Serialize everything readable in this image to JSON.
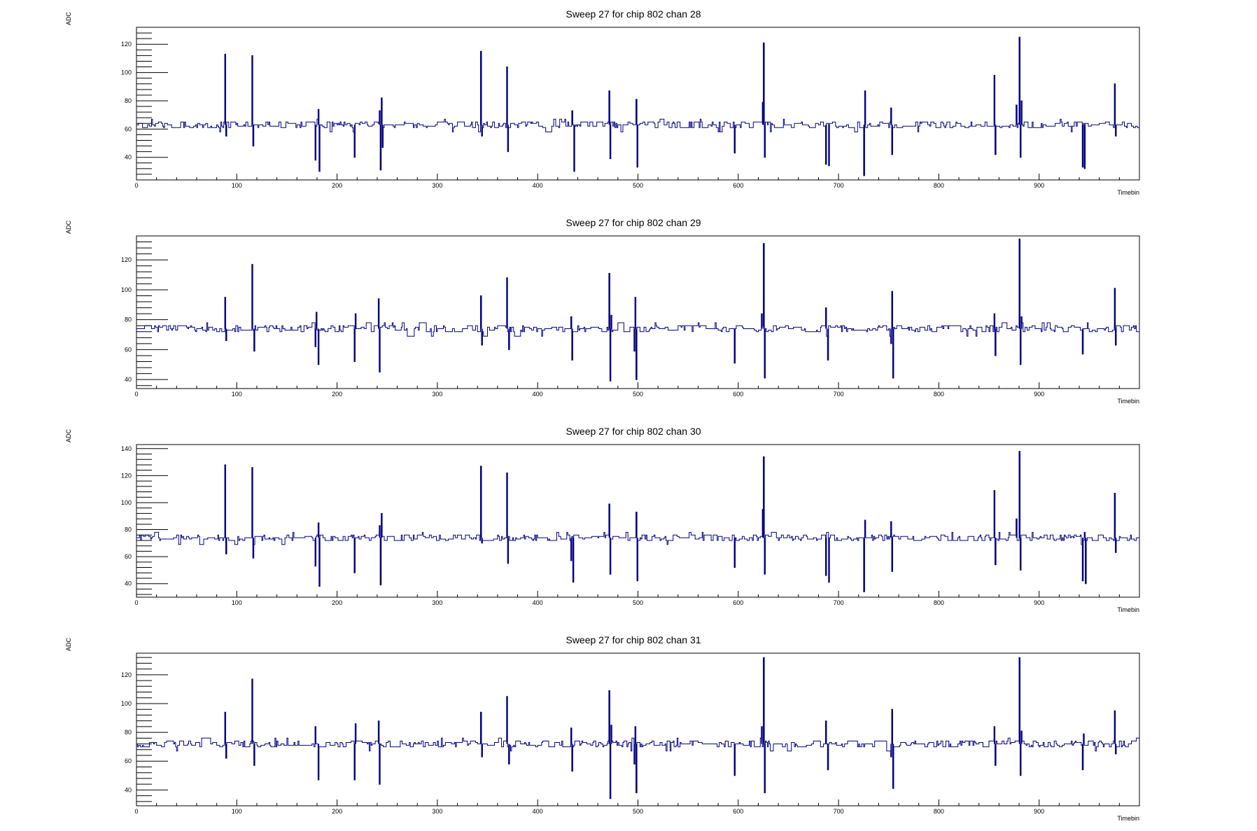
{
  "chart_data": [
    {
      "type": "line",
      "title": "Sweep 27 for chip 802 chan 28",
      "xlabel": "Timebin",
      "ylabel": "ADC",
      "xlim": [
        0,
        1000
      ],
      "ylim": [
        24,
        132
      ],
      "x_ticks": [
        "0",
        "100",
        "200",
        "300",
        "400",
        "500",
        "600",
        "700",
        "800",
        "900"
      ],
      "y_ticks": [
        "40",
        "60",
        "80",
        "100",
        "120"
      ],
      "baseline": 63,
      "color": "#000080",
      "spikes": [
        {
          "x": 88,
          "y": 113
        },
        {
          "x": 89,
          "y": 55
        },
        {
          "x": 115,
          "y": 112
        },
        {
          "x": 116,
          "y": 48
        },
        {
          "x": 178,
          "y": 38
        },
        {
          "x": 181,
          "y": 74
        },
        {
          "x": 182,
          "y": 30
        },
        {
          "x": 217,
          "y": 40
        },
        {
          "x": 242,
          "y": 73
        },
        {
          "x": 243,
          "y": 31
        },
        {
          "x": 244,
          "y": 82
        },
        {
          "x": 245,
          "y": 47
        },
        {
          "x": 343,
          "y": 115
        },
        {
          "x": 344,
          "y": 55
        },
        {
          "x": 369,
          "y": 104
        },
        {
          "x": 370,
          "y": 44
        },
        {
          "x": 434,
          "y": 73
        },
        {
          "x": 436,
          "y": 30
        },
        {
          "x": 471,
          "y": 87
        },
        {
          "x": 472,
          "y": 39
        },
        {
          "x": 498,
          "y": 81
        },
        {
          "x": 499,
          "y": 33
        },
        {
          "x": 596,
          "y": 43
        },
        {
          "x": 624,
          "y": 79
        },
        {
          "x": 625,
          "y": 121
        },
        {
          "x": 626,
          "y": 40
        },
        {
          "x": 687,
          "y": 35
        },
        {
          "x": 690,
          "y": 34
        },
        {
          "x": 725,
          "y": 27
        },
        {
          "x": 726,
          "y": 87
        },
        {
          "x": 752,
          "y": 75
        },
        {
          "x": 753,
          "y": 42
        },
        {
          "x": 855,
          "y": 98
        },
        {
          "x": 856,
          "y": 42
        },
        {
          "x": 877,
          "y": 77
        },
        {
          "x": 880,
          "y": 125
        },
        {
          "x": 881,
          "y": 40
        },
        {
          "x": 882,
          "y": 80
        },
        {
          "x": 943,
          "y": 33
        },
        {
          "x": 945,
          "y": 32
        },
        {
          "x": 975,
          "y": 92
        },
        {
          "x": 976,
          "y": 55
        }
      ]
    },
    {
      "type": "line",
      "title": "Sweep 27 for chip 802 chan 29",
      "xlabel": "Timebin",
      "ylabel": "ADC",
      "xlim": [
        0,
        1000
      ],
      "ylim": [
        34,
        136
      ],
      "x_ticks": [
        "0",
        "100",
        "200",
        "300",
        "400",
        "500",
        "600",
        "700",
        "800",
        "900"
      ],
      "y_ticks": [
        "40",
        "60",
        "80",
        "100",
        "120"
      ],
      "baseline": 74,
      "color": "#000080",
      "spikes": [
        {
          "x": 88,
          "y": 95
        },
        {
          "x": 89,
          "y": 66
        },
        {
          "x": 115,
          "y": 117
        },
        {
          "x": 117,
          "y": 59
        },
        {
          "x": 178,
          "y": 62
        },
        {
          "x": 179,
          "y": 85
        },
        {
          "x": 181,
          "y": 50
        },
        {
          "x": 217,
          "y": 52
        },
        {
          "x": 218,
          "y": 84
        },
        {
          "x": 241,
          "y": 94
        },
        {
          "x": 242,
          "y": 45
        },
        {
          "x": 343,
          "y": 96
        },
        {
          "x": 344,
          "y": 63
        },
        {
          "x": 369,
          "y": 108
        },
        {
          "x": 371,
          "y": 60
        },
        {
          "x": 433,
          "y": 82
        },
        {
          "x": 434,
          "y": 53
        },
        {
          "x": 471,
          "y": 111
        },
        {
          "x": 472,
          "y": 39
        },
        {
          "x": 473,
          "y": 83
        },
        {
          "x": 496,
          "y": 59
        },
        {
          "x": 497,
          "y": 95
        },
        {
          "x": 498,
          "y": 40
        },
        {
          "x": 596,
          "y": 51
        },
        {
          "x": 623,
          "y": 84
        },
        {
          "x": 625,
          "y": 131
        },
        {
          "x": 626,
          "y": 41
        },
        {
          "x": 687,
          "y": 88
        },
        {
          "x": 689,
          "y": 53
        },
        {
          "x": 752,
          "y": 64
        },
        {
          "x": 753,
          "y": 99
        },
        {
          "x": 754,
          "y": 41
        },
        {
          "x": 855,
          "y": 84
        },
        {
          "x": 856,
          "y": 56
        },
        {
          "x": 880,
          "y": 134
        },
        {
          "x": 881,
          "y": 50
        },
        {
          "x": 882,
          "y": 82
        },
        {
          "x": 943,
          "y": 57
        },
        {
          "x": 975,
          "y": 101
        },
        {
          "x": 976,
          "y": 63
        }
      ]
    },
    {
      "type": "line",
      "title": "Sweep 27 for chip 802 chan 30",
      "xlabel": "Timebin",
      "ylabel": "ADC",
      "xlim": [
        0,
        1000
      ],
      "ylim": [
        30,
        143
      ],
      "x_ticks": [
        "0",
        "100",
        "200",
        "300",
        "400",
        "500",
        "600",
        "700",
        "800",
        "900"
      ],
      "y_ticks": [
        "40",
        "60",
        "80",
        "100",
        "120",
        "140"
      ],
      "baseline": 74,
      "color": "#000080",
      "spikes": [
        {
          "x": 88,
          "y": 128
        },
        {
          "x": 89,
          "y": 62
        },
        {
          "x": 115,
          "y": 126
        },
        {
          "x": 116,
          "y": 59
        },
        {
          "x": 178,
          "y": 53
        },
        {
          "x": 181,
          "y": 85
        },
        {
          "x": 182,
          "y": 38
        },
        {
          "x": 217,
          "y": 48
        },
        {
          "x": 242,
          "y": 83
        },
        {
          "x": 243,
          "y": 39
        },
        {
          "x": 244,
          "y": 92
        },
        {
          "x": 343,
          "y": 127
        },
        {
          "x": 344,
          "y": 70
        },
        {
          "x": 369,
          "y": 122
        },
        {
          "x": 370,
          "y": 55
        },
        {
          "x": 433,
          "y": 57
        },
        {
          "x": 435,
          "y": 41
        },
        {
          "x": 471,
          "y": 99
        },
        {
          "x": 472,
          "y": 47
        },
        {
          "x": 498,
          "y": 93
        },
        {
          "x": 499,
          "y": 42
        },
        {
          "x": 596,
          "y": 52
        },
        {
          "x": 624,
          "y": 95
        },
        {
          "x": 625,
          "y": 134
        },
        {
          "x": 626,
          "y": 47
        },
        {
          "x": 687,
          "y": 46
        },
        {
          "x": 690,
          "y": 41
        },
        {
          "x": 725,
          "y": 34
        },
        {
          "x": 726,
          "y": 87
        },
        {
          "x": 752,
          "y": 86
        },
        {
          "x": 753,
          "y": 49
        },
        {
          "x": 855,
          "y": 109
        },
        {
          "x": 856,
          "y": 54
        },
        {
          "x": 877,
          "y": 88
        },
        {
          "x": 880,
          "y": 138
        },
        {
          "x": 881,
          "y": 50
        },
        {
          "x": 943,
          "y": 42
        },
        {
          "x": 945,
          "y": 78
        },
        {
          "x": 946,
          "y": 40
        },
        {
          "x": 975,
          "y": 107
        },
        {
          "x": 976,
          "y": 63
        }
      ]
    },
    {
      "type": "line",
      "title": "Sweep 27 for chip 802 chan 31",
      "xlabel": "Timebin",
      "ylabel": "ADC",
      "xlim": [
        0,
        1000
      ],
      "ylim": [
        29,
        135
      ],
      "x_ticks": [
        "0",
        "100",
        "200",
        "300",
        "400",
        "500",
        "600",
        "700",
        "800",
        "900"
      ],
      "y_ticks": [
        "40",
        "60",
        "80",
        "100",
        "120"
      ],
      "baseline": 72,
      "color": "#000080",
      "spikes": [
        {
          "x": 88,
          "y": 94
        },
        {
          "x": 89,
          "y": 62
        },
        {
          "x": 115,
          "y": 117
        },
        {
          "x": 117,
          "y": 57
        },
        {
          "x": 178,
          "y": 84
        },
        {
          "x": 181,
          "y": 47
        },
        {
          "x": 217,
          "y": 47
        },
        {
          "x": 218,
          "y": 86
        },
        {
          "x": 241,
          "y": 88
        },
        {
          "x": 242,
          "y": 44
        },
        {
          "x": 343,
          "y": 94
        },
        {
          "x": 344,
          "y": 63
        },
        {
          "x": 369,
          "y": 105
        },
        {
          "x": 371,
          "y": 58
        },
        {
          "x": 433,
          "y": 83
        },
        {
          "x": 434,
          "y": 53
        },
        {
          "x": 471,
          "y": 109
        },
        {
          "x": 472,
          "y": 34
        },
        {
          "x": 473,
          "y": 85
        },
        {
          "x": 496,
          "y": 58
        },
        {
          "x": 497,
          "y": 84
        },
        {
          "x": 498,
          "y": 38
        },
        {
          "x": 596,
          "y": 50
        },
        {
          "x": 623,
          "y": 84
        },
        {
          "x": 625,
          "y": 132
        },
        {
          "x": 626,
          "y": 38
        },
        {
          "x": 687,
          "y": 88
        },
        {
          "x": 689,
          "y": 54
        },
        {
          "x": 752,
          "y": 63
        },
        {
          "x": 753,
          "y": 96
        },
        {
          "x": 754,
          "y": 41
        },
        {
          "x": 855,
          "y": 84
        },
        {
          "x": 856,
          "y": 57
        },
        {
          "x": 880,
          "y": 132
        },
        {
          "x": 881,
          "y": 50
        },
        {
          "x": 882,
          "y": 81
        },
        {
          "x": 943,
          "y": 54
        },
        {
          "x": 944,
          "y": 79
        },
        {
          "x": 975,
          "y": 95
        },
        {
          "x": 976,
          "y": 65
        }
      ]
    }
  ]
}
